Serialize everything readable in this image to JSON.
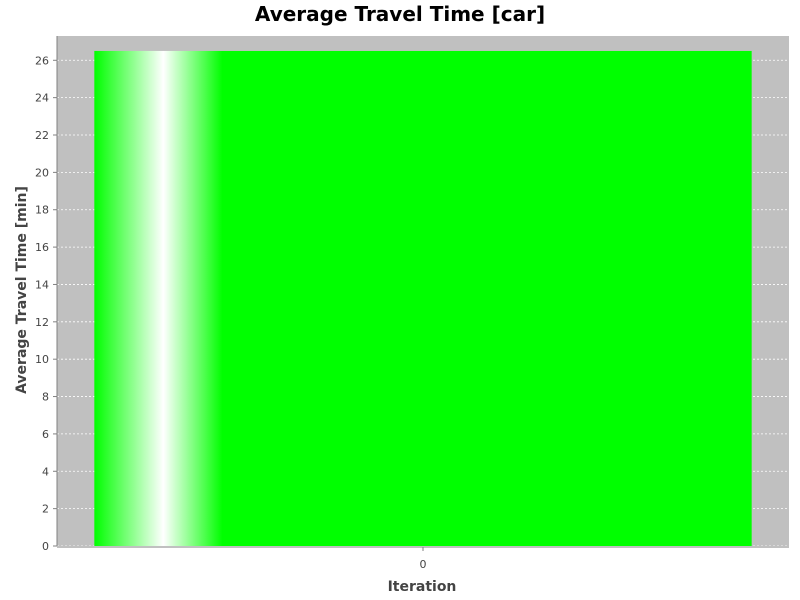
{
  "chart_data": {
    "type": "bar",
    "title": "Average Travel Time [car]",
    "xlabel": "Iteration",
    "ylabel": "Average Travel Time [min]",
    "categories": [
      "0"
    ],
    "series": [
      {
        "values": [
          26.5
        ]
      }
    ],
    "ylim": [
      0,
      27.3
    ],
    "yticks": [
      0,
      2,
      4,
      6,
      8,
      10,
      12,
      14,
      16,
      18,
      20,
      22,
      24,
      26
    ],
    "grid": true,
    "legend": "none",
    "colors": {
      "bar": "#00ff00",
      "plot_background": "#c0c0c0",
      "gridline": "#ffffff",
      "axis": "#808080",
      "tick_label": "#444444"
    }
  }
}
